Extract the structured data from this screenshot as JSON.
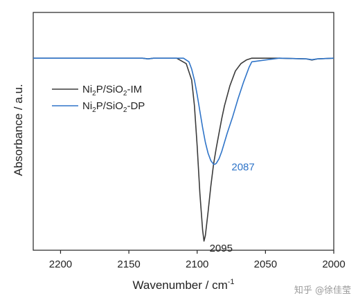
{
  "chart_data": {
    "type": "line",
    "title": "",
    "xlabel": "Wavenumber / cm",
    "xlabel_superscript": "-1",
    "ylabel": "Absorbance / a.u.",
    "xlim": [
      2220,
      2000
    ],
    "x_reversed": true,
    "x_ticks": [
      2200,
      2150,
      2100,
      2050,
      2000
    ],
    "ylim": [
      -1.05,
      0.25
    ],
    "y_ticks_shown": false,
    "grid": false,
    "legend_position": "left",
    "series": [
      {
        "name": "Ni2P/SiO2-IM",
        "legend": {
          "base": "Ni",
          "s1": "2",
          "mid": "P/SiO",
          "s2": "2",
          "tail": "-IM"
        },
        "color": "#3a3a3a",
        "x": [
          2220,
          2140,
          2136,
          2132,
          2115,
          2108,
          2104,
          2102,
          2100,
          2098,
          2096,
          2095,
          2094,
          2092,
          2090,
          2088,
          2086,
          2084,
          2082,
          2080,
          2076,
          2072,
          2068,
          2064,
          2060,
          2040,
          2020,
          2016,
          2012,
          2000
        ],
        "y": [
          0,
          0,
          -0.004,
          0,
          0,
          -0.03,
          -0.12,
          -0.26,
          -0.48,
          -0.74,
          -0.94,
          -1.0,
          -0.97,
          -0.84,
          -0.7,
          -0.58,
          -0.49,
          -0.41,
          -0.33,
          -0.26,
          -0.15,
          -0.07,
          -0.03,
          -0.01,
          0,
          0,
          -0.004,
          -0.01,
          -0.004,
          0
        ]
      },
      {
        "name": "Ni2P/SiO2-DP",
        "legend": {
          "base": "Ni",
          "s1": "2",
          "mid": "P/SiO",
          "s2": "2",
          "tail": "-DP"
        },
        "color": "#2f74c8",
        "x": [
          2220,
          2140,
          2136,
          2132,
          2110,
          2106,
          2104,
          2102,
          2100,
          2098,
          2096,
          2094,
          2092,
          2090,
          2088,
          2087,
          2086,
          2084,
          2082,
          2080,
          2078,
          2074,
          2070,
          2066,
          2062,
          2060,
          2040,
          2020,
          2016,
          2012,
          2000
        ],
        "y": [
          0,
          0,
          -0.004,
          0,
          0,
          -0.02,
          -0.06,
          -0.12,
          -0.2,
          -0.29,
          -0.38,
          -0.46,
          -0.52,
          -0.56,
          -0.58,
          -0.58,
          -0.575,
          -0.55,
          -0.51,
          -0.46,
          -0.41,
          -0.32,
          -0.22,
          -0.13,
          -0.05,
          -0.02,
          0,
          -0.004,
          -0.008,
          -0.004,
          0
        ]
      }
    ],
    "annotations": [
      {
        "text": "2095",
        "x": 2095,
        "y": -1.0,
        "color": "#222222"
      },
      {
        "text": "2087",
        "x": 2087,
        "y": -0.58,
        "color": "#2f74c8"
      }
    ]
  },
  "watermark": "知乎 @徐佳莹"
}
